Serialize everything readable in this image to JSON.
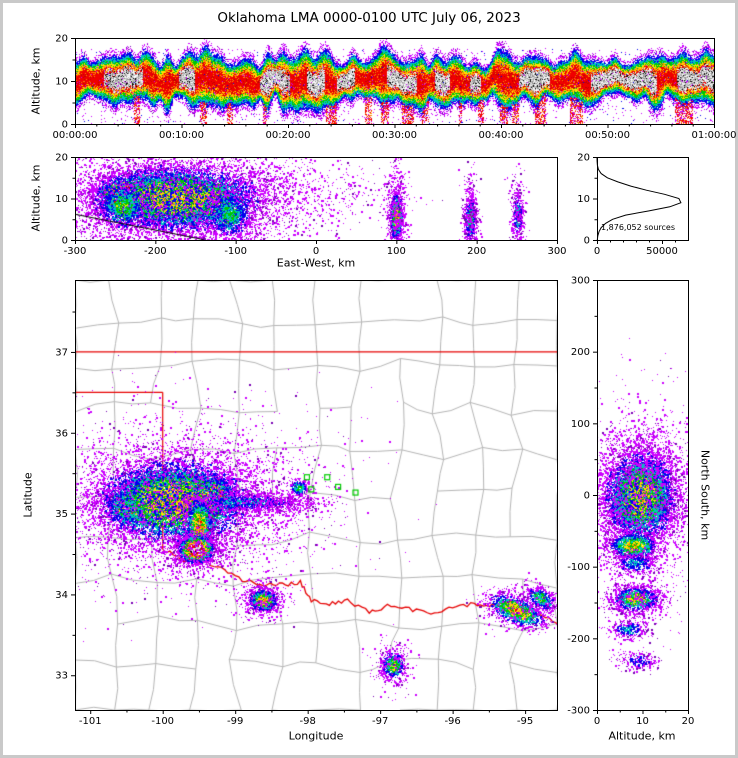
{
  "title": "Oklahoma LMA 0000-0100 UTC July 06, 2023",
  "colors": {
    "density_ramp_low_to_high": [
      "#cc00ff",
      "#0000ee",
      "#00c3c3",
      "#00c800",
      "#ffe400",
      "#ff8c00",
      "#f00000",
      "#bdbdbd",
      "#ffffff"
    ],
    "state_border": "#e60000",
    "county_line": "#b4b4b4",
    "station_marker": "#00cc00",
    "axis": "#000000",
    "background": "#ffffff",
    "frame": "#c9c9c9"
  },
  "chart_data": [
    {
      "id": "time_height",
      "type": "heatmap",
      "xlabel": "",
      "ylabel": "Altitude, km",
      "xlim_seconds": [
        0,
        3600
      ],
      "x_tick_seconds": [
        0,
        600,
        1200,
        1800,
        2400,
        3000,
        3600
      ],
      "x_tick_labels": [
        "00:00:00",
        "00:10:00",
        "00:20:00",
        "00:30:00",
        "00:40:00",
        "00:50:00",
        "01:00:00"
      ],
      "x_minor_step_seconds": 120,
      "ylim": [
        0,
        20
      ],
      "y_ticks": [
        0,
        10,
        20
      ],
      "y_minor_ticks": [
        5,
        15
      ],
      "band": {
        "center_km": 10.3,
        "halfwidth_km": 4.6,
        "center_wobble_km": 1.3,
        "halfwidth_wobble_km": 1.6,
        "core_threshold": 0.52,
        "ground_streak_level": 0.72,
        "sparse_dots": 1600
      }
    },
    {
      "id": "ew_height",
      "type": "heatmap",
      "xlabel": "East-West, km",
      "ylabel": "Altitude, km",
      "xlim": [
        -300,
        300
      ],
      "x_ticks": [
        -300,
        -200,
        -100,
        0,
        100,
        200,
        300
      ],
      "ylim": [
        0,
        20
      ],
      "y_ticks": [
        0,
        10,
        20
      ],
      "y_minor_ticks": [
        5,
        15
      ],
      "baseline_line": {
        "from": [
          -300,
          6.2
        ],
        "to": [
          -140,
          0.1
        ]
      },
      "clusters": [
        {
          "cx": -235,
          "cy": 10.5,
          "rx": 18,
          "ry": 2.3,
          "n": 4500,
          "peak": 1.0
        },
        {
          "cx": -195,
          "cy": 10.2,
          "rx": 17,
          "ry": 2.5,
          "n": 4500,
          "peak": 1.0
        },
        {
          "cx": -160,
          "cy": 10.0,
          "rx": 15,
          "ry": 2.4,
          "n": 4000,
          "peak": 1.0
        },
        {
          "cx": -128,
          "cy": 9.3,
          "rx": 12,
          "ry": 2.0,
          "n": 3000,
          "peak": 0.9
        },
        {
          "cx": -175,
          "cy": 10.0,
          "rx": 55,
          "ry": 4.2,
          "n": 8000,
          "peak": 0.5
        },
        {
          "cx": -172,
          "cy": 9.5,
          "rx": 75,
          "ry": 6.2,
          "n": 3200,
          "peak": 0.15
        },
        {
          "cx": -168,
          "cy": 9.0,
          "rx": 102,
          "ry": 7.5,
          "n": 1500,
          "peak": 0.05
        },
        {
          "cx": -108,
          "cy": 6.0,
          "rx": 15,
          "ry": 3.0,
          "n": 1200,
          "peak": 0.3
        },
        {
          "cx": -242,
          "cy": 8.0,
          "rx": 15,
          "ry": 3.0,
          "n": 1000,
          "peak": 0.35
        },
        {
          "cx": 100,
          "cy": 5.5,
          "rx": 4,
          "ry": 3.0,
          "n": 1400,
          "peak": 0.5
        },
        {
          "cx": 100,
          "cy": 7.0,
          "rx": 7,
          "ry": 6.5,
          "n": 550,
          "peak": 0.08
        },
        {
          "cx": 192,
          "cy": 5.0,
          "rx": 3.5,
          "ry": 2.8,
          "n": 750,
          "peak": 0.32
        },
        {
          "cx": 192,
          "cy": 6.0,
          "rx": 6,
          "ry": 5.5,
          "n": 320,
          "peak": 0.07
        },
        {
          "cx": 251,
          "cy": 6.0,
          "rx": 3.5,
          "ry": 3.0,
          "n": 420,
          "peak": 0.22
        },
        {
          "cx": 251,
          "cy": 7.0,
          "rx": 6,
          "ry": 5.5,
          "n": 200,
          "peak": 0.06
        },
        {
          "cx": 20,
          "cy": 11,
          "rx": 55,
          "ry": 3.5,
          "n": 240,
          "peak": 0.04
        },
        {
          "cx": -60,
          "cy": 12,
          "rx": 25,
          "ry": 3.5,
          "n": 200,
          "peak": 0.05
        }
      ]
    },
    {
      "id": "altitude_histogram",
      "type": "line",
      "xlabel": "",
      "ylabel": "",
      "annotation": "1,876,052 sources",
      "xlim": [
        0,
        70000
      ],
      "x_ticks": [
        0,
        50000
      ],
      "x_minor_ticks": [
        10000,
        20000,
        30000,
        40000,
        60000
      ],
      "ylim": [
        0,
        20
      ],
      "y_ticks": [
        0,
        10,
        20
      ],
      "y_minor_ticks": [
        5,
        15
      ],
      "curve_alt_km": [
        0,
        1,
        2,
        3,
        4,
        5,
        6,
        7,
        8,
        9,
        10,
        11,
        12,
        13,
        14,
        15,
        16,
        17,
        18,
        19,
        20
      ],
      "curve_counts": [
        200,
        600,
        1500,
        3200,
        6500,
        12000,
        22000,
        40000,
        56000,
        64500,
        63000,
        52000,
        38000,
        26000,
        16000,
        8000,
        3200,
        1100,
        300,
        80,
        0
      ]
    },
    {
      "id": "plan_view",
      "type": "heatmap",
      "xlabel": "Longitude",
      "ylabel": "Latitude",
      "xlim": [
        -101.21,
        -94.56
      ],
      "x_ticks": [
        -101,
        -100,
        -99,
        -98,
        -97,
        -96,
        -95
      ],
      "x_minor_ticks": [
        -100.5,
        -99.5,
        -98.5,
        -97.5,
        -96.5,
        -95.5
      ],
      "ylim": [
        32.57,
        37.89
      ],
      "y_ticks": [
        33,
        34,
        35,
        36,
        37
      ],
      "y_minor_ticks": [
        33.5,
        34.5,
        35.5,
        36.5,
        37.5
      ],
      "state_borders": {
        "north_lat": 37,
        "panhandle_south_lat": 36.5,
        "meridian_lon": -100,
        "meridian_south_lat": 34.56
      },
      "red_river_path": [
        [
          -100,
          34.56
        ],
        [
          -99.7,
          34.42
        ],
        [
          -99.4,
          34.4
        ],
        [
          -99.2,
          34.33
        ],
        [
          -98.9,
          34.18
        ],
        [
          -98.6,
          34.12
        ],
        [
          -98.35,
          34.12
        ],
        [
          -98.1,
          34.15
        ],
        [
          -97.95,
          33.92
        ],
        [
          -97.7,
          33.88
        ],
        [
          -97.45,
          33.92
        ],
        [
          -97.15,
          33.78
        ],
        [
          -96.9,
          33.86
        ],
        [
          -96.6,
          33.82
        ],
        [
          -96.3,
          33.76
        ],
        [
          -96.0,
          33.84
        ],
        [
          -95.7,
          33.88
        ],
        [
          -95.45,
          33.86
        ],
        [
          -95.2,
          33.92
        ],
        [
          -94.95,
          33.82
        ],
        [
          -94.75,
          33.72
        ],
        [
          -94.56,
          33.64
        ]
      ],
      "stations_lon_lat": [
        [
          -98.01,
          35.45
        ],
        [
          -97.95,
          35.3
        ],
        [
          -97.73,
          35.45
        ],
        [
          -97.58,
          35.33
        ],
        [
          -97.34,
          35.26
        ]
      ],
      "county_grid": {
        "cols": 12,
        "rows": 10,
        "node_jitter_deg": 0.2,
        "skip_prob": 0.1
      },
      "clusters": [
        {
          "cx": -100.45,
          "cy": 35.1,
          "rx": 0.14,
          "ry": 0.1,
          "n": 3000,
          "peak": 0.85
        },
        {
          "cx": -100.15,
          "cy": 35.22,
          "rx": 0.16,
          "ry": 0.11,
          "n": 5500,
          "peak": 1.0
        },
        {
          "cx": -99.85,
          "cy": 35.28,
          "rx": 0.16,
          "ry": 0.1,
          "n": 5500,
          "peak": 1.0
        },
        {
          "cx": -99.55,
          "cy": 35.22,
          "rx": 0.14,
          "ry": 0.1,
          "n": 4500,
          "peak": 1.0
        },
        {
          "cx": -99.32,
          "cy": 35.25,
          "rx": 0.12,
          "ry": 0.09,
          "n": 3500,
          "peak": 0.95
        },
        {
          "cx": -99.85,
          "cy": 35.15,
          "rx": 0.55,
          "ry": 0.27,
          "n": 8000,
          "peak": 0.5
        },
        {
          "cx": -99.85,
          "cy": 35.15,
          "rx": 0.8,
          "ry": 0.42,
          "n": 3200,
          "peak": 0.14
        },
        {
          "cx": -99.8,
          "cy": 35.2,
          "rx": 1.2,
          "ry": 0.6,
          "n": 1600,
          "peak": 0.045
        },
        {
          "cx": -98.85,
          "cy": 35.14,
          "rx": 0.45,
          "ry": 0.06,
          "n": 1200,
          "peak": 0.2
        },
        {
          "cx": -98.35,
          "cy": 35.12,
          "rx": 0.3,
          "ry": 0.07,
          "n": 450,
          "peak": 0.08
        },
        {
          "cx": -98.12,
          "cy": 35.32,
          "rx": 0.07,
          "ry": 0.05,
          "n": 350,
          "peak": 0.3
        },
        {
          "cx": -99.5,
          "cy": 34.85,
          "rx": 0.09,
          "ry": 0.16,
          "n": 1600,
          "peak": 0.6
        },
        {
          "cx": -99.54,
          "cy": 34.56,
          "rx": 0.11,
          "ry": 0.08,
          "n": 3200,
          "peak": 1.0
        },
        {
          "cx": -99.54,
          "cy": 34.56,
          "rx": 0.26,
          "ry": 0.18,
          "n": 600,
          "peak": 0.07
        },
        {
          "cx": -98.62,
          "cy": 33.93,
          "rx": 0.1,
          "ry": 0.07,
          "n": 1300,
          "peak": 0.5
        },
        {
          "cx": -98.62,
          "cy": 33.93,
          "rx": 0.2,
          "ry": 0.15,
          "n": 320,
          "peak": 0.06
        },
        {
          "cx": -95.12,
          "cy": 33.8,
          "rx": 0.2,
          "ry": 0.08,
          "rot": -0.35,
          "n": 1600,
          "peak": 0.55
        },
        {
          "cx": -94.78,
          "cy": 33.95,
          "rx": 0.11,
          "ry": 0.06,
          "rot": -0.5,
          "n": 500,
          "peak": 0.35
        },
        {
          "cx": -94.98,
          "cy": 33.85,
          "rx": 0.32,
          "ry": 0.16,
          "n": 320,
          "peak": 0.05
        },
        {
          "cx": -96.82,
          "cy": 33.12,
          "rx": 0.08,
          "ry": 0.09,
          "n": 700,
          "peak": 0.4
        },
        {
          "cx": -96.82,
          "cy": 33.12,
          "rx": 0.16,
          "ry": 0.18,
          "n": 200,
          "peak": 0.05
        }
      ]
    },
    {
      "id": "ns_height",
      "type": "heatmap",
      "xlabel": "Altitude, km",
      "ylabel_right": "North South, km",
      "xlim": [
        0,
        20
      ],
      "x_ticks": [
        0,
        10,
        20
      ],
      "x_minor_ticks": [
        5,
        15
      ],
      "ylim": [
        -300,
        300
      ],
      "y_ticks": [
        300,
        200,
        100,
        0,
        -100,
        -200,
        -300
      ],
      "y_minor_ticks": [
        250,
        150,
        50,
        -50,
        -150,
        -250
      ],
      "clusters": [
        {
          "cx": 10,
          "cy": 5,
          "rx": 2.2,
          "ry": 14,
          "n": 8000,
          "peak": 1.0
        },
        {
          "cx": 9.5,
          "cy": -18,
          "rx": 2.4,
          "ry": 10,
          "n": 4500,
          "peak": 0.95
        },
        {
          "cx": 9.5,
          "cy": -2,
          "rx": 4.2,
          "ry": 34,
          "n": 6000,
          "peak": 0.45
        },
        {
          "cx": 9,
          "cy": -8,
          "rx": 6.0,
          "ry": 52,
          "n": 2000,
          "peak": 0.11
        },
        {
          "cx": 9,
          "cy": 0,
          "rx": 8.0,
          "ry": 85,
          "n": 800,
          "peak": 0.04
        },
        {
          "cx": 8,
          "cy": -71,
          "rx": 2.6,
          "ry": 9,
          "n": 1300,
          "peak": 0.5
        },
        {
          "cx": 8.2,
          "cy": -95,
          "rx": 2.6,
          "ry": 8,
          "n": 500,
          "peak": 0.2
        },
        {
          "cx": 8.5,
          "cy": -145,
          "rx": 2.6,
          "ry": 9,
          "n": 1200,
          "peak": 0.45
        },
        {
          "cx": 8.5,
          "cy": -148,
          "rx": 4.5,
          "ry": 16,
          "n": 380,
          "peak": 0.07
        },
        {
          "cx": 7,
          "cy": -188,
          "rx": 2.2,
          "ry": 7,
          "n": 380,
          "peak": 0.2
        },
        {
          "cx": 9,
          "cy": -231,
          "rx": 2.2,
          "ry": 7,
          "n": 280,
          "peak": 0.14
        },
        {
          "cx": 10,
          "cy": 55,
          "rx": 3.5,
          "ry": 20,
          "n": 320,
          "peak": 0.05
        }
      ]
    }
  ]
}
